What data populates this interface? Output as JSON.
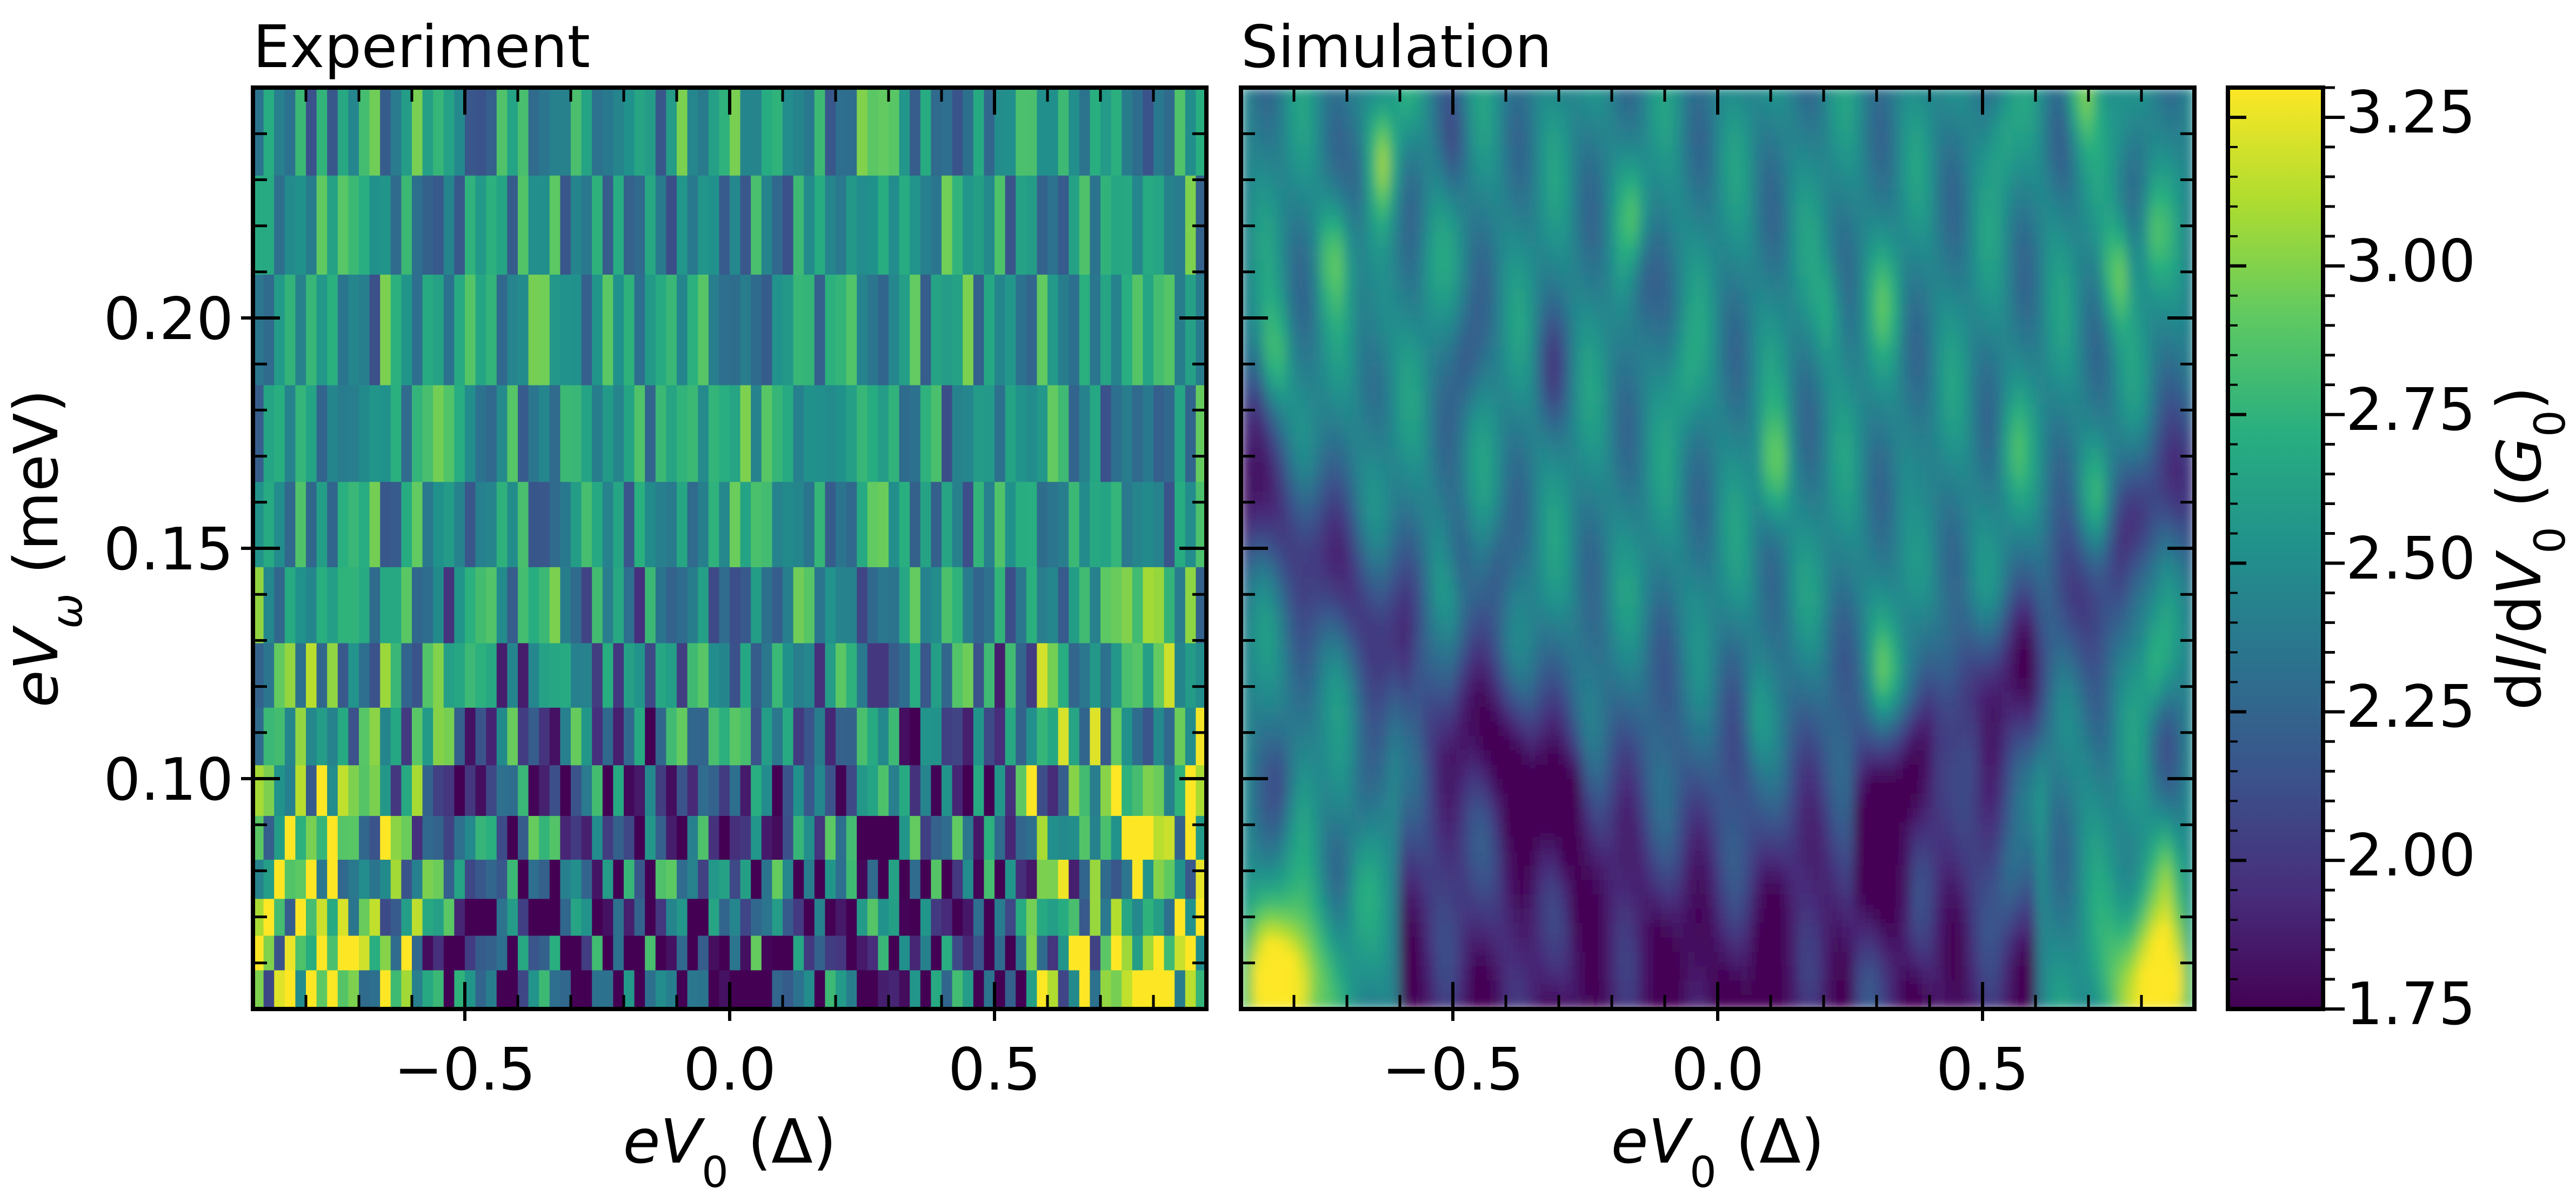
{
  "chart_data": [
    {
      "type": "heatmap",
      "title": "Experiment",
      "xlabel": "eV0 (Δ)",
      "ylabel": "eVω (meV)",
      "xlim": [
        -0.9,
        0.9
      ],
      "ylim": [
        0.05,
        0.25
      ],
      "x_ticks": [
        -0.5,
        0.0,
        0.5
      ],
      "x_tick_labels": [
        "−0.5",
        "0.0",
        "0.5"
      ],
      "y_ticks": [
        0.1,
        0.15,
        0.2
      ],
      "y_tick_labels": [
        "0.10",
        "0.15",
        "0.20"
      ],
      "y_rows": [
        0.055,
        0.062,
        0.07,
        0.078,
        0.087,
        0.097,
        0.109,
        0.122,
        0.137,
        0.155,
        0.174,
        0.197,
        0.222,
        0.24
      ]
    },
    {
      "type": "heatmap",
      "title": "Simulation",
      "xlabel": "eV0 (Δ)",
      "xlim": [
        -0.9,
        0.9
      ],
      "ylim": [
        0.05,
        0.25
      ],
      "x_ticks": [
        -0.5,
        0.0,
        0.5
      ],
      "x_tick_labels": [
        "−0.5",
        "0.0",
        "0.5"
      ]
    }
  ],
  "colorbar": {
    "label": "dI/dV0 (G0)",
    "colormap": "viridis",
    "range": [
      1.75,
      3.3
    ],
    "ticks": [
      1.75,
      2.0,
      2.25,
      2.5,
      2.75,
      3.0,
      3.25
    ],
    "tick_labels": [
      "1.75",
      "2.00",
      "2.25",
      "2.50",
      "2.75",
      "3.00",
      "3.25"
    ]
  },
  "colors": {
    "viridis_low": "#440154",
    "viridis_mid": "#21918c",
    "viridis_high": "#fde725"
  }
}
